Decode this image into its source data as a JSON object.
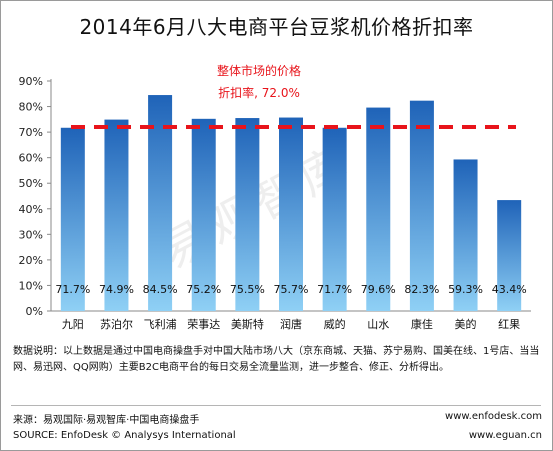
{
  "page": {
    "title": "2014年6月八大电商平台豆浆机价格折扣率",
    "watermark": "易观智库",
    "note": "数据说明：以上数据是通过中国电商操盘手对中国大陆市场八大（京东商城、天猫、苏宁易购、国美在线、1号店、当当网、易迅网、QQ网购）主要B2C电商平台的每日交易全流量监测，进一步整合、修正、分析得出。",
    "source_cn": "来源：易观国际·易观智库·中国电商操盘手",
    "source_en": "SOURCE: EnfoDesk © Analysys International",
    "url1": "www.enfodesk.com",
    "url2": "www.eguan.cn"
  },
  "chart_data": {
    "type": "bar",
    "title": "2014年6月八大电商平台豆浆机价格折扣率",
    "categories": [
      "九阳",
      "苏泊尔",
      "飞利浦",
      "荣事达",
      "美斯特",
      "润唐",
      "威的",
      "山水",
      "康佳",
      "美的",
      "红果"
    ],
    "values": [
      71.7,
      74.9,
      84.5,
      75.2,
      75.5,
      75.7,
      71.7,
      79.6,
      82.3,
      59.3,
      43.4
    ],
    "value_labels": [
      "71.7%",
      "74.9%",
      "84.5%",
      "75.2%",
      "75.5%",
      "75.7%",
      "71.7%",
      "79.6%",
      "82.3%",
      "59.3%",
      "43.4%"
    ],
    "ylim": [
      0,
      90
    ],
    "yticks": [
      "0%",
      "10%",
      "20%",
      "30%",
      "40%",
      "50%",
      "60%",
      "70%",
      "80%",
      "90%"
    ],
    "reference_line": {
      "value": 72.0,
      "label_line1": "整体市场的价格",
      "label_line2": "折扣率, 72.0%",
      "color": "#e8141b"
    },
    "bar_color_top": "#1f63b8",
    "bar_color_bottom": "#8fd0f5",
    "grid": false
  }
}
